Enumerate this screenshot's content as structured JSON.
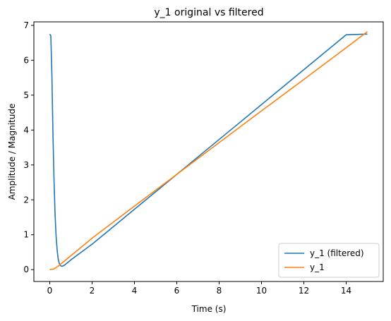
{
  "chart_data": {
    "type": "line",
    "title": "y_1 original vs filtered",
    "xlabel": "Time (s)",
    "ylabel": "Amplitude / Magnitude",
    "xlim": [
      -0.75,
      15.75
    ],
    "ylim": [
      -0.34,
      7.1
    ],
    "xticks": [
      0,
      2,
      4,
      6,
      8,
      10,
      12,
      14
    ],
    "yticks": [
      0,
      1,
      2,
      3,
      4,
      5,
      6,
      7
    ],
    "grid": false,
    "legend": "lower-right",
    "series": [
      {
        "name": "y_1 (filtered)",
        "color": "#1f77b4",
        "x": [
          0,
          0.05,
          0.1,
          0.15,
          0.2,
          0.25,
          0.3,
          0.35,
          0.4,
          0.45,
          0.5,
          0.55,
          0.6,
          0.7,
          0.8,
          1.0,
          2,
          4,
          6,
          8,
          10,
          12,
          14,
          15
        ],
        "y": [
          6.75,
          6.7,
          5.6,
          3.9,
          2.6,
          1.6,
          0.95,
          0.55,
          0.3,
          0.18,
          0.12,
          0.1,
          0.1,
          0.13,
          0.18,
          0.28,
          0.73,
          1.73,
          2.73,
          3.73,
          4.73,
          5.73,
          6.73,
          6.75
        ]
      },
      {
        "name": "y_1",
        "color": "#ff7f0e",
        "x": [
          0,
          0.1,
          0.2,
          0.3,
          0.4,
          0.5,
          0.6,
          0.8,
          1.0,
          2,
          4,
          6,
          8,
          10,
          12,
          14,
          15
        ],
        "y": [
          0.0,
          0.01,
          0.02,
          0.06,
          0.1,
          0.15,
          0.2,
          0.3,
          0.4,
          0.9,
          1.82,
          2.73,
          3.64,
          4.55,
          5.45,
          6.36,
          6.82
        ]
      }
    ]
  }
}
